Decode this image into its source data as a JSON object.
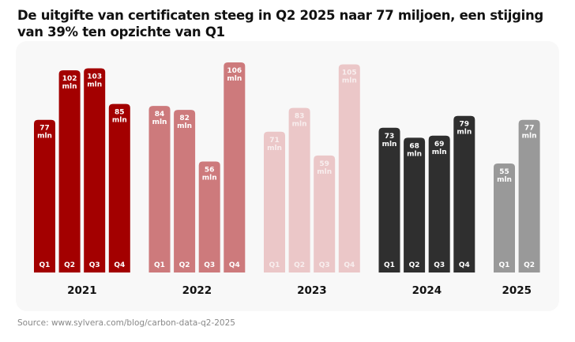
{
  "title": "De uitgifte van certificaten steeg in Q2 2025 naar 77 miljoen, een stijging van 39% ten opzichte van Q1",
  "source": "Source: www.sylvera.com/blog/carbon-data-q2-2025",
  "chart_data": {
    "type": "bar",
    "title": "De uitgifte van certificaten steeg in Q2 2025 naar 77 miljoen, een stijging van 39% ten opzichte van Q1",
    "unit_label": "mln",
    "grid": false,
    "groups": [
      {
        "year": "2021",
        "color": "#a30000",
        "label_color": "#ffffff",
        "quarters": [
          "Q1",
          "Q2",
          "Q3",
          "Q4"
        ],
        "values": [
          77,
          102,
          103,
          85
        ]
      },
      {
        "year": "2022",
        "color": "#cd7a7c",
        "label_color": "#ffffff",
        "quarters": [
          "Q1",
          "Q2",
          "Q3",
          "Q4"
        ],
        "values": [
          84,
          82,
          56,
          106
        ]
      },
      {
        "year": "2023",
        "color": "#ebc7c8",
        "label_color": "#f8eeee",
        "quarters": [
          "Q1",
          "Q2",
          "Q3",
          "Q4"
        ],
        "values": [
          71,
          83,
          59,
          105
        ]
      },
      {
        "year": "2024",
        "color": "#2f2f2f",
        "label_color": "#ffffff",
        "quarters": [
          "Q1",
          "Q2",
          "Q3",
          "Q4"
        ],
        "values": [
          73,
          68,
          69,
          79
        ]
      },
      {
        "year": "2025",
        "color": "#999999",
        "label_color": "#ffffff",
        "quarters": [
          "Q1",
          "Q2"
        ],
        "values": [
          55,
          77
        ]
      }
    ]
  }
}
